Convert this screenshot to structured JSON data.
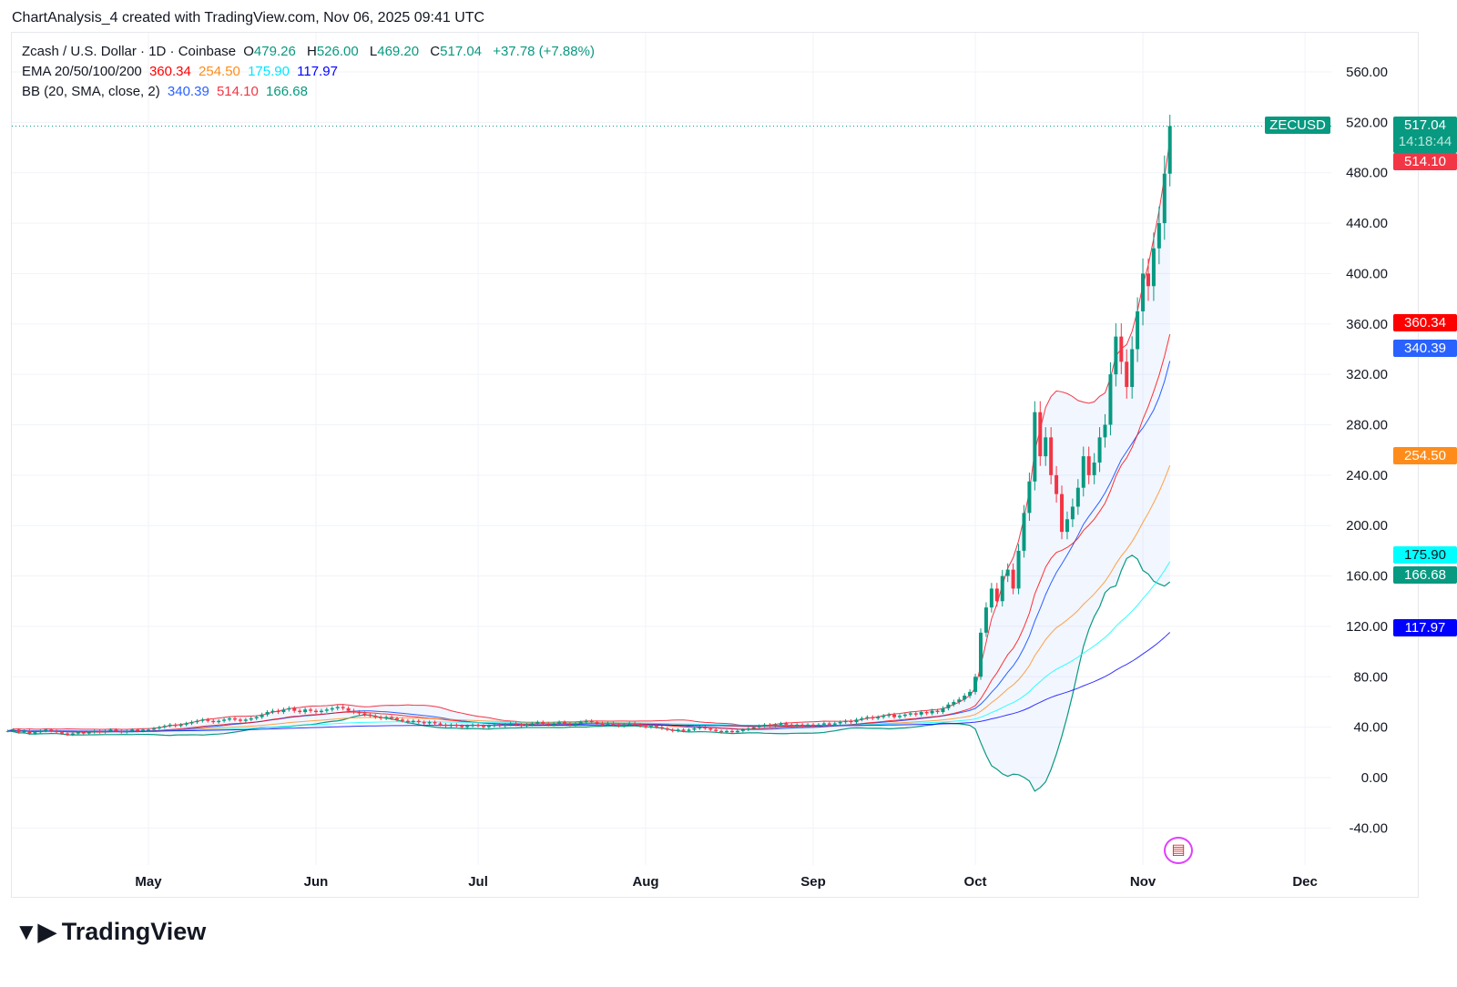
{
  "caption": "ChartAnalysis_4 created with TradingView.com, Nov 06, 2025 09:41 UTC",
  "legend": {
    "symbol": "Zcash / U.S. Dollar · 1D · Coinbase",
    "o_label": "O",
    "o": "479.26",
    "h_label": "H",
    "h": "526.00",
    "l_label": "L",
    "l": "469.20",
    "c_label": "C",
    "c": "517.04",
    "change": "+37.78 (+7.88%)",
    "ema_label": "EMA 20/50/100/200",
    "ema20": "360.34",
    "ema50": "254.50",
    "ema100": "175.90",
    "ema200": "117.97",
    "bb_label": "BB (20, SMA, close, 2)",
    "bb_basis": "340.39",
    "bb_upper": "514.10",
    "bb_lower": "166.68"
  },
  "tags": {
    "symbol": "ZECUSD",
    "price": "517.04",
    "countdown": "14:18:44"
  },
  "brand": "TradingView",
  "colors": {
    "up": "#089981",
    "down": "#f23645",
    "ema20": "#ff0000",
    "ema50": "#ff8c1a",
    "ema100": "#00ffff",
    "ema200": "#0000ff",
    "bb_basis": "#2962ff",
    "bb_upper": "#f23645",
    "bb_lower": "#089981"
  },
  "chart_data": {
    "type": "candlestick",
    "title": "Zcash / U.S. Dollar · 1D · Coinbase",
    "start_date": "2025-04-05",
    "ylim": [
      -60,
      580
    ],
    "y_ticks": [
      "-40.00",
      "0.00",
      "40.00",
      "80.00",
      "120.00",
      "160.00",
      "200.00",
      "240.00",
      "280.00",
      "320.00",
      "360.00",
      "400.00",
      "440.00",
      "480.00",
      "520.00",
      "560.00"
    ],
    "y_tick_values": [
      -40,
      0,
      40,
      80,
      120,
      160,
      200,
      240,
      280,
      320,
      360,
      400,
      440,
      480,
      520,
      560
    ],
    "x_ticks": [
      {
        "label": "May",
        "day": 26
      },
      {
        "label": "Jun",
        "day": 57
      },
      {
        "label": "Jul",
        "day": 87
      },
      {
        "label": "Aug",
        "day": 118
      },
      {
        "label": "Sep",
        "day": 149
      },
      {
        "label": "Oct",
        "day": 179
      },
      {
        "label": "Nov",
        "day": 210
      },
      {
        "label": "Dec",
        "day": 240
      }
    ],
    "last_bar": {
      "open": 479.26,
      "high": 526.0,
      "low": 469.2,
      "close": 517.04
    },
    "closes": [
      37,
      38,
      36,
      37,
      35,
      36,
      37,
      38,
      37,
      36,
      35,
      34,
      35,
      36,
      35,
      36,
      37,
      36,
      37,
      38,
      37,
      36,
      37,
      38,
      37,
      38,
      38,
      39,
      40,
      41,
      42,
      41,
      42,
      43,
      44,
      45,
      46,
      45,
      44,
      45,
      46,
      47,
      46,
      45,
      46,
      47,
      48,
      50,
      52,
      53,
      52,
      54,
      55,
      53,
      52,
      54,
      53,
      52,
      53,
      54,
      55,
      56,
      55,
      53,
      52,
      51,
      50,
      49,
      48,
      47,
      48,
      47,
      46,
      45,
      44,
      45,
      44,
      43,
      44,
      43,
      42,
      41,
      42,
      41,
      40,
      41,
      42,
      41,
      40,
      41,
      42,
      41,
      42,
      43,
      42,
      41,
      42,
      43,
      44,
      43,
      42,
      43,
      44,
      43,
      42,
      43,
      44,
      45,
      44,
      43,
      42,
      43,
      42,
      41,
      42,
      43,
      42,
      41,
      40,
      41,
      40,
      39,
      38,
      37,
      38,
      37,
      38,
      39,
      40,
      39,
      38,
      37,
      36,
      37,
      36,
      37,
      38,
      39,
      40,
      41,
      42,
      41,
      42,
      43,
      42,
      41,
      42,
      41,
      42,
      41,
      42,
      43,
      42,
      43,
      44,
      45,
      44,
      46,
      47,
      48,
      47,
      48,
      49,
      50,
      48,
      49,
      50,
      51,
      50,
      52,
      51,
      53,
      52,
      55,
      58,
      60,
      62,
      65,
      68,
      80,
      115,
      135,
      150,
      140,
      160,
      165,
      150,
      180,
      210,
      235,
      290,
      255,
      270,
      240,
      225,
      195,
      205,
      215,
      230,
      255,
      240,
      250,
      270,
      280,
      320,
      350,
      330,
      310,
      340,
      370,
      400,
      390,
      420,
      440,
      479.26,
      517.04
    ],
    "indicator_last": {
      "ema20": 360.34,
      "ema50": 254.5,
      "ema100": 175.9,
      "ema200": 117.97,
      "bb_basis": 340.39,
      "bb_upper": 514.1,
      "bb_lower": 166.68
    }
  }
}
